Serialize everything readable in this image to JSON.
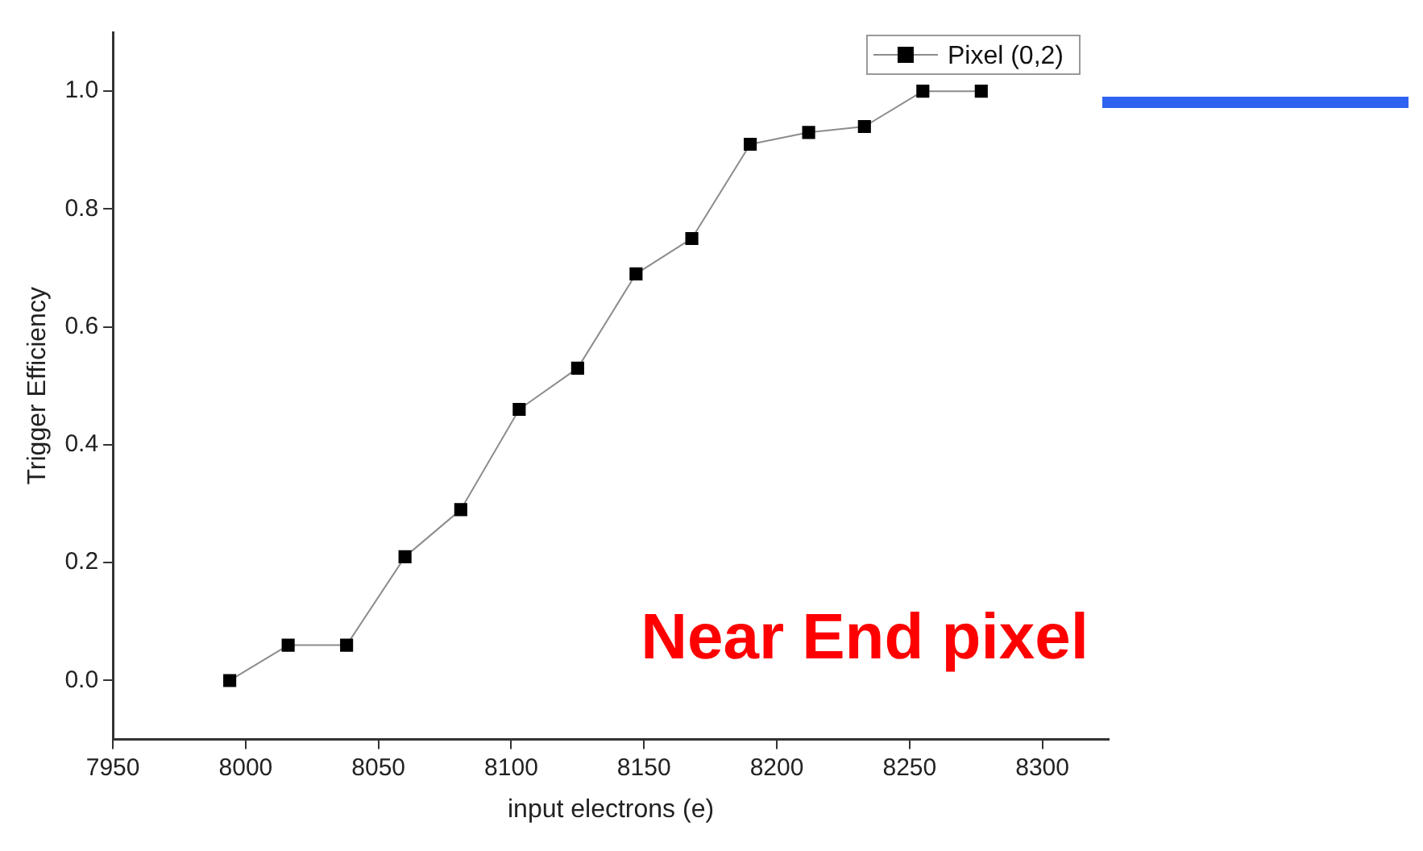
{
  "chart_data": {
    "type": "line",
    "xlabel": "input electrons (e)",
    "ylabel": "Trigger Efficiency",
    "x": [
      7994,
      8016,
      8038,
      8060,
      8081,
      8103,
      8125,
      8147,
      8168,
      8190,
      8212,
      8233,
      8255,
      8277
    ],
    "series": [
      {
        "name": "Pixel (0,2)",
        "color": "#000000",
        "values": [
          0,
          0.06,
          0.06,
          0.21,
          0.29,
          0.46,
          0.53,
          0.69,
          0.75,
          0.91,
          0.93,
          0.94,
          1.0,
          1.0
        ]
      }
    ],
    "xlim": [
      7950,
      8325
    ],
    "xticks": [
      7950,
      8000,
      8050,
      8100,
      8150,
      8200,
      8250,
      8300
    ],
    "ylim": [
      -0.1,
      1.1
    ],
    "yticks": [
      "0.0",
      0.2,
      0.4,
      0.6,
      0.8,
      "1.0"
    ],
    "grid": false,
    "legend": "top right",
    "marker": "square",
    "line_style": "solid",
    "annotations": [
      "Near End pixel"
    ]
  }
}
